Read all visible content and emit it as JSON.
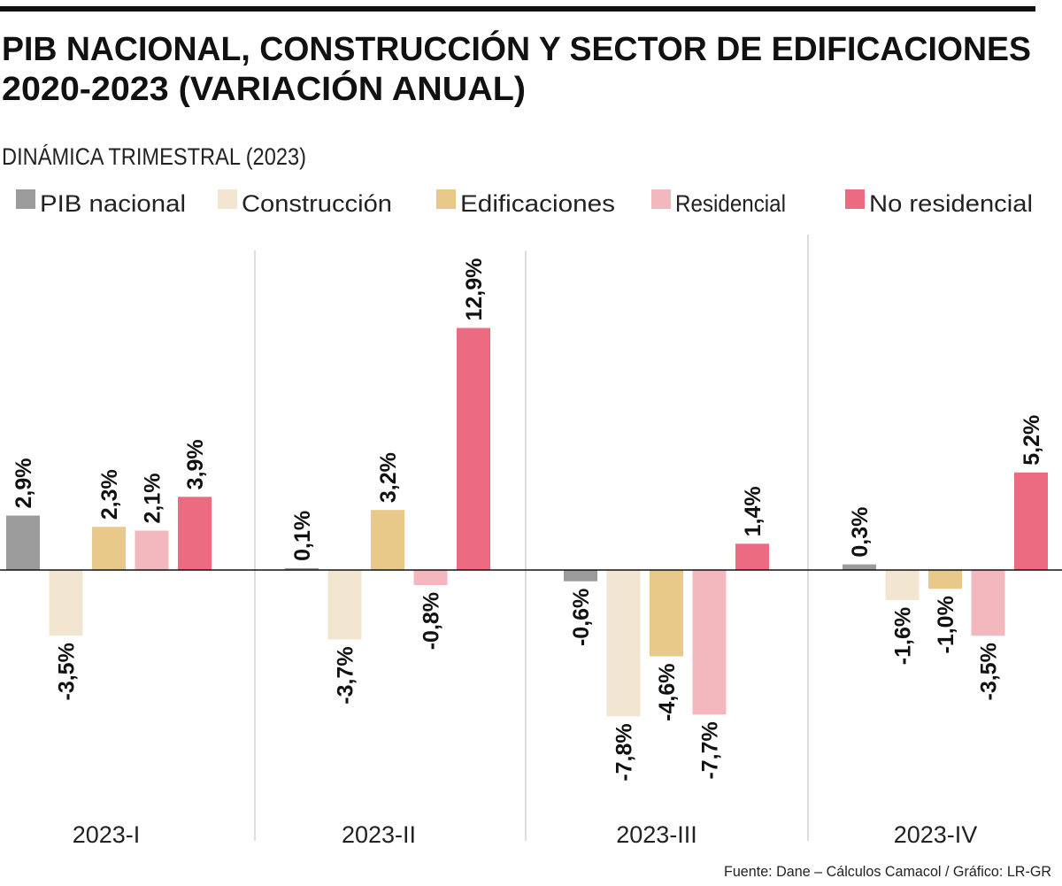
{
  "chart_data": {
    "type": "bar",
    "title": "PIB NACIONAL, CONSTRUCCIÓN Y SECTOR DE EDIFICACIONES",
    "title_line2": "2020-2023 (VARIACIÓN ANUAL)",
    "subtitle": "DINÁMICA TRIMESTRAL (2023)",
    "categories": [
      "2023-I",
      "2023-II",
      "2023-III",
      "2023-IV"
    ],
    "series": [
      {
        "name": "PIB nacional",
        "color": "#9b9b9b",
        "values": [
          2.9,
          0.1,
          -0.6,
          0.3
        ],
        "labels": [
          "2,9%",
          "0,1%",
          "-0,6%",
          "0,3%"
        ]
      },
      {
        "name": "Construcción",
        "color": "#f2e6d0",
        "values": [
          -3.5,
          -3.7,
          -7.8,
          -1.6
        ],
        "labels": [
          "-3,5%",
          "-3,7%",
          "-7,8%",
          "-1,6%"
        ]
      },
      {
        "name": "Edificaciones",
        "color": "#e8c98a",
        "values": [
          2.3,
          3.2,
          -4.6,
          -1.0
        ],
        "labels": [
          "2,3%",
          "3,2%",
          "-4,6%",
          "-1,0%"
        ]
      },
      {
        "name": "Residencial",
        "color": "#f2b8bd",
        "values": [
          2.1,
          -0.8,
          -7.7,
          -3.5
        ],
        "labels": [
          "2,1%",
          "-0,8%",
          "-7,7%",
          "-3,5%"
        ]
      },
      {
        "name": "No residencial",
        "color": "#ec6b80",
        "values": [
          3.9,
          12.9,
          1.4,
          5.2
        ],
        "labels": [
          "3,9%",
          "12,9%",
          "1,4%",
          "5,2%"
        ]
      }
    ],
    "legend_position": "top-left",
    "grid": false,
    "ylim": [
      -8,
      13
    ],
    "source": "Fuente: Dane – Cálculos Camacol / Gráfico: LR-GR"
  }
}
